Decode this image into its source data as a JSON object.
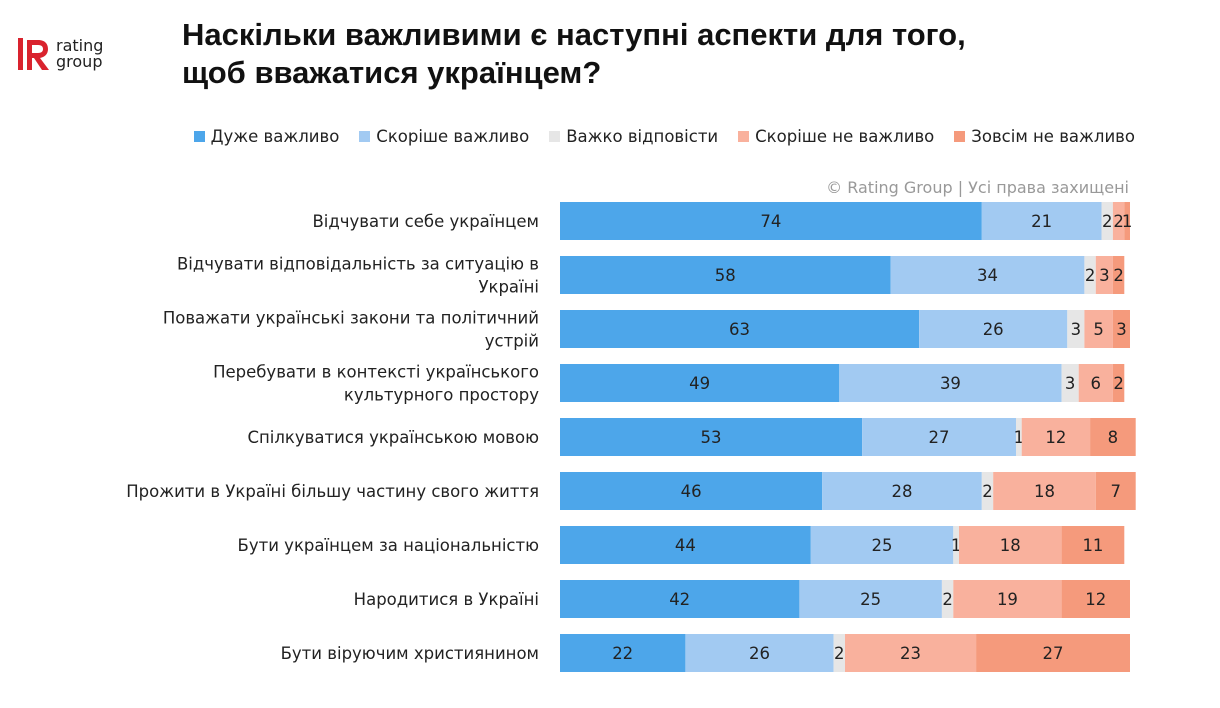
{
  "brand": {
    "logo_letter": "R",
    "logo_line1": "rating",
    "logo_line2": "group",
    "logo_color": "#d9232e"
  },
  "header": {
    "title_line1": "Наскільки важливими є наступні аспекти для того,",
    "title_line2": "щоб вважатися українцем?"
  },
  "copyright": "© Rating Group | Усі права захищені",
  "chart_data": {
    "type": "bar",
    "orientation": "horizontal",
    "stacked": true,
    "xlim": [
      0,
      100
    ],
    "grid": false,
    "legend_position": "top-right",
    "categories": [
      [
        "Відчувати себе українцем"
      ],
      [
        "Відчувати відповідальність за ситуацію в",
        "Україні"
      ],
      [
        "Поважати українські закони та політичний",
        "устрій"
      ],
      [
        "Перебувати в контексті українського",
        "культурного простору"
      ],
      [
        "Спілкуватися українською мовою"
      ],
      [
        "Прожити в Україні більшу частину свого життя"
      ],
      [
        "Бути українцем за національністю"
      ],
      [
        "Народитися в Україні"
      ],
      [
        "Бути віруючим християнином"
      ]
    ],
    "series": [
      {
        "name": "Дуже важливо",
        "color": "#4da6ea",
        "values": [
          74,
          58,
          63,
          49,
          53,
          46,
          44,
          42,
          22
        ]
      },
      {
        "name": "Скоріше важливо",
        "color": "#a2caf2",
        "values": [
          21,
          34,
          26,
          39,
          27,
          28,
          25,
          25,
          26
        ]
      },
      {
        "name": "Важко відповісти",
        "color": "#e6e6e6",
        "values": [
          2,
          2,
          3,
          3,
          1,
          2,
          1,
          2,
          2
        ]
      },
      {
        "name": "Скоріше не важливо",
        "color": "#f9b19d",
        "values": [
          2,
          3,
          5,
          6,
          12,
          18,
          18,
          19,
          23
        ]
      },
      {
        "name": "Зовсім не важливо",
        "color": "#f59a7c",
        "values": [
          1,
          2,
          3,
          2,
          8,
          7,
          11,
          12,
          27
        ]
      }
    ]
  }
}
